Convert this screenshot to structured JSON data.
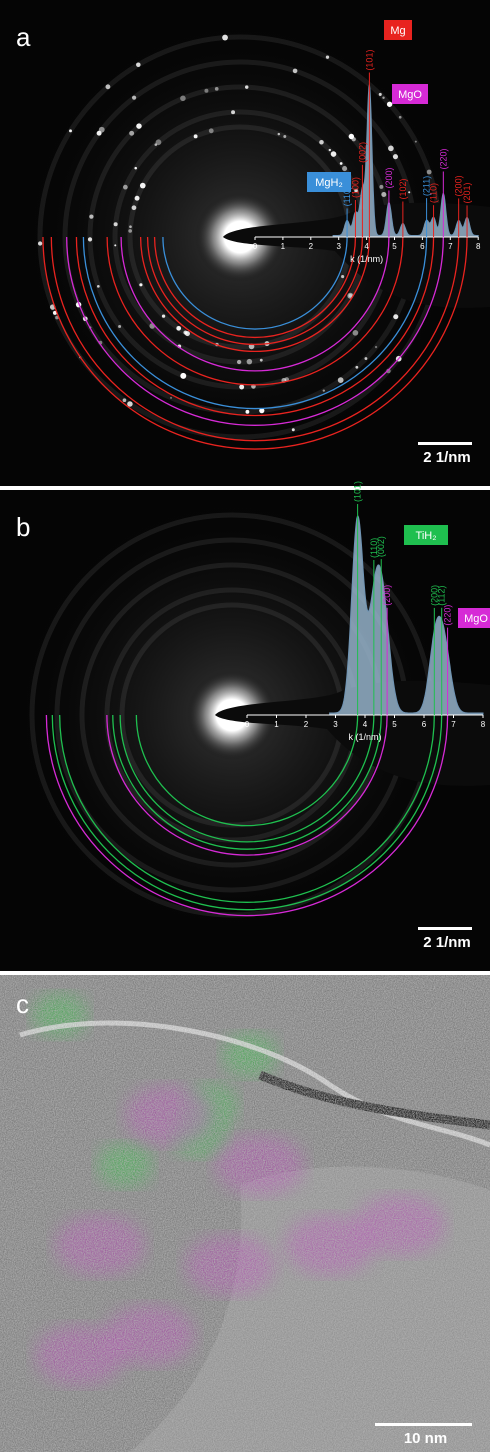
{
  "panels": [
    {
      "label": "a",
      "type": "diffraction",
      "scale_bar": "2 1/nm",
      "x_label": "k (1/nm)",
      "xlim": [
        0,
        8
      ],
      "xticks": [
        0,
        1,
        2,
        3,
        4,
        5,
        6,
        7,
        8
      ],
      "phases": [
        {
          "name": "Mg",
          "color": "#e8231f",
          "peaks": [
            {
              "label": "(100)",
              "k": 3.6,
              "intensity": 15
            },
            {
              "label": "(002)",
              "k": 3.85,
              "intensity": 30
            },
            {
              "label": "(101)",
              "k": 4.1,
              "intensity": 100
            },
            {
              "label": "(102)",
              "k": 5.3,
              "intensity": 8
            },
            {
              "label": "(110)",
              "k": 6.4,
              "intensity": 12
            },
            {
              "label": "(200)",
              "k": 7.3,
              "intensity": 10
            },
            {
              "label": "(201)",
              "k": 7.6,
              "intensity": 12
            }
          ]
        },
        {
          "name": "MgO",
          "color": "#d62ad6",
          "peaks": [
            {
              "label": "(200)",
              "k": 4.8,
              "intensity": 22
            },
            {
              "label": "(220)",
              "k": 6.75,
              "intensity": 28
            }
          ]
        },
        {
          "name": "MgH₂",
          "color": "#3a8fd9",
          "peaks": [
            {
              "label": "(110)",
              "k": 3.3,
              "intensity": 10
            },
            {
              "label": "(211)",
              "k": 6.15,
              "intensity": 10
            }
          ]
        }
      ]
    },
    {
      "label": "b",
      "type": "diffraction",
      "scale_bar": "2 1/nm",
      "x_label": "k (1/nm)",
      "xlim": [
        0,
        8
      ],
      "xticks": [
        0,
        1,
        2,
        3,
        4,
        5,
        6,
        7,
        8
      ],
      "phases": [
        {
          "name": "TiH₂",
          "color": "#1fbf4f",
          "peaks": [
            {
              "label": "(101)",
              "k": 3.75,
              "intensity": 100
            },
            {
              "label": "(110)",
              "k": 4.3,
              "intensity": 45
            },
            {
              "label": "(002)",
              "k": 4.55,
              "intensity": 40
            },
            {
              "label": "(200)",
              "k": 6.35,
              "intensity": 30
            },
            {
              "label": "(112)",
              "k": 6.6,
              "intensity": 25
            }
          ]
        },
        {
          "name": "MgO",
          "color": "#d62ad6",
          "peaks": [
            {
              "label": "(200)",
              "k": 4.75,
              "intensity": 20
            },
            {
              "label": "(220)",
              "k": 6.8,
              "intensity": 15
            }
          ]
        }
      ]
    },
    {
      "label": "c",
      "type": "hrtem",
      "scale_bar": "10 nm"
    }
  ]
}
